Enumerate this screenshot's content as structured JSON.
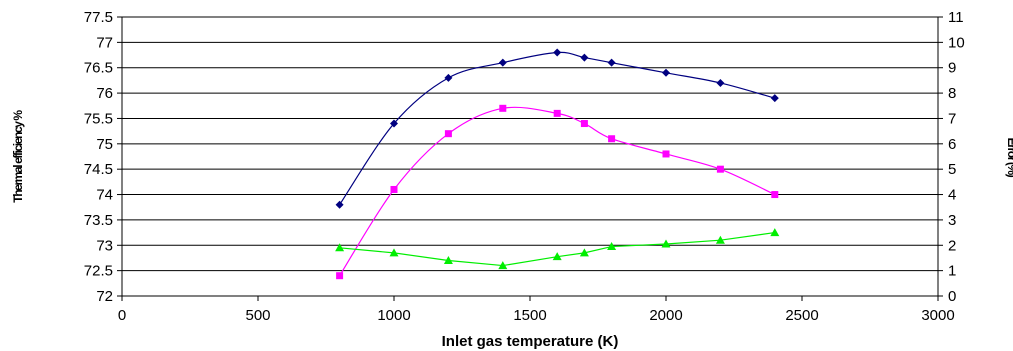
{
  "chart_data": {
    "type": "line",
    "xlabel": "Inlet gas temperature (K)",
    "ylabel_left": "Thermal efficiency %",
    "ylabel_right": "Error (%)",
    "xlim": [
      0,
      3000
    ],
    "xticks": [
      0,
      500,
      1000,
      1500,
      2000,
      2500,
      3000
    ],
    "ylim_left": [
      72,
      77.5
    ],
    "yticks_left": [
      72,
      72.5,
      73,
      73.5,
      74,
      74.5,
      75,
      75.5,
      76,
      76.5,
      77,
      77.5
    ],
    "ylim_right": [
      0,
      11
    ],
    "yticks_right": [
      0,
      1,
      2,
      3,
      4,
      5,
      6,
      7,
      8,
      9,
      10,
      11
    ],
    "grid": "horizontal",
    "series": [
      {
        "axis": "left",
        "color": "#000080",
        "marker": "diamond",
        "x": [
          800,
          1000,
          1200,
          1400,
          1600,
          1700,
          1800,
          2000,
          2200,
          2400
        ],
        "y": [
          73.8,
          75.4,
          76.3,
          76.6,
          76.8,
          76.7,
          76.6,
          76.4,
          76.2,
          75.9
        ]
      },
      {
        "axis": "left",
        "color": "#ff00ff",
        "marker": "square",
        "x": [
          800,
          1000,
          1200,
          1400,
          1600,
          1700,
          1800,
          2000,
          2200,
          2400
        ],
        "y": [
          72.4,
          74.1,
          75.2,
          75.7,
          75.6,
          75.4,
          75.1,
          74.8,
          74.5,
          74.0
        ]
      },
      {
        "axis": "right",
        "color": "#00ee00",
        "marker": "triangle",
        "x": [
          800,
          1000,
          1200,
          1400,
          1600,
          1700,
          1800,
          2000,
          2200,
          2400
        ],
        "y": [
          1.9,
          1.7,
          1.4,
          1.2,
          1.55,
          1.7,
          1.95,
          2.05,
          2.2,
          2.5
        ]
      }
    ]
  }
}
